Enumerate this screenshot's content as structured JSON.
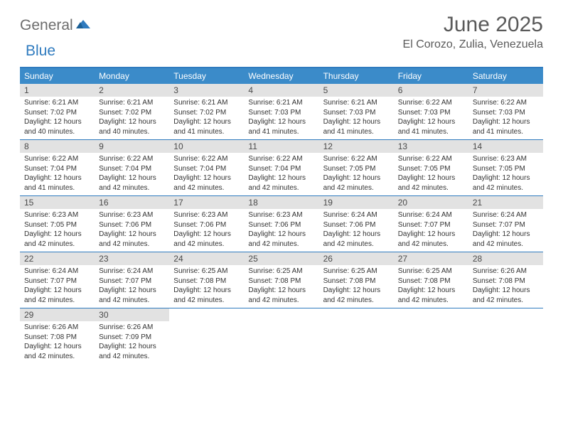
{
  "logo": {
    "part1": "General",
    "part2": "Blue"
  },
  "title": "June 2025",
  "location": "El Corozo, Zulia, Venezuela",
  "colors": {
    "header_bg": "#3b8bc9",
    "rule": "#2f7bbf",
    "daynum_bg": "#e2e2e2",
    "text": "#333333",
    "title_text": "#5a5a5a"
  },
  "day_headers": [
    "Sunday",
    "Monday",
    "Tuesday",
    "Wednesday",
    "Thursday",
    "Friday",
    "Saturday"
  ],
  "weeks": [
    [
      {
        "n": "1",
        "sr": "6:21 AM",
        "ss": "7:02 PM",
        "dl": "12 hours and 40 minutes."
      },
      {
        "n": "2",
        "sr": "6:21 AM",
        "ss": "7:02 PM",
        "dl": "12 hours and 40 minutes."
      },
      {
        "n": "3",
        "sr": "6:21 AM",
        "ss": "7:02 PM",
        "dl": "12 hours and 41 minutes."
      },
      {
        "n": "4",
        "sr": "6:21 AM",
        "ss": "7:03 PM",
        "dl": "12 hours and 41 minutes."
      },
      {
        "n": "5",
        "sr": "6:21 AM",
        "ss": "7:03 PM",
        "dl": "12 hours and 41 minutes."
      },
      {
        "n": "6",
        "sr": "6:22 AM",
        "ss": "7:03 PM",
        "dl": "12 hours and 41 minutes."
      },
      {
        "n": "7",
        "sr": "6:22 AM",
        "ss": "7:03 PM",
        "dl": "12 hours and 41 minutes."
      }
    ],
    [
      {
        "n": "8",
        "sr": "6:22 AM",
        "ss": "7:04 PM",
        "dl": "12 hours and 41 minutes."
      },
      {
        "n": "9",
        "sr": "6:22 AM",
        "ss": "7:04 PM",
        "dl": "12 hours and 42 minutes."
      },
      {
        "n": "10",
        "sr": "6:22 AM",
        "ss": "7:04 PM",
        "dl": "12 hours and 42 minutes."
      },
      {
        "n": "11",
        "sr": "6:22 AM",
        "ss": "7:04 PM",
        "dl": "12 hours and 42 minutes."
      },
      {
        "n": "12",
        "sr": "6:22 AM",
        "ss": "7:05 PM",
        "dl": "12 hours and 42 minutes."
      },
      {
        "n": "13",
        "sr": "6:22 AM",
        "ss": "7:05 PM",
        "dl": "12 hours and 42 minutes."
      },
      {
        "n": "14",
        "sr": "6:23 AM",
        "ss": "7:05 PM",
        "dl": "12 hours and 42 minutes."
      }
    ],
    [
      {
        "n": "15",
        "sr": "6:23 AM",
        "ss": "7:05 PM",
        "dl": "12 hours and 42 minutes."
      },
      {
        "n": "16",
        "sr": "6:23 AM",
        "ss": "7:06 PM",
        "dl": "12 hours and 42 minutes."
      },
      {
        "n": "17",
        "sr": "6:23 AM",
        "ss": "7:06 PM",
        "dl": "12 hours and 42 minutes."
      },
      {
        "n": "18",
        "sr": "6:23 AM",
        "ss": "7:06 PM",
        "dl": "12 hours and 42 minutes."
      },
      {
        "n": "19",
        "sr": "6:24 AM",
        "ss": "7:06 PM",
        "dl": "12 hours and 42 minutes."
      },
      {
        "n": "20",
        "sr": "6:24 AM",
        "ss": "7:07 PM",
        "dl": "12 hours and 42 minutes."
      },
      {
        "n": "21",
        "sr": "6:24 AM",
        "ss": "7:07 PM",
        "dl": "12 hours and 42 minutes."
      }
    ],
    [
      {
        "n": "22",
        "sr": "6:24 AM",
        "ss": "7:07 PM",
        "dl": "12 hours and 42 minutes."
      },
      {
        "n": "23",
        "sr": "6:24 AM",
        "ss": "7:07 PM",
        "dl": "12 hours and 42 minutes."
      },
      {
        "n": "24",
        "sr": "6:25 AM",
        "ss": "7:08 PM",
        "dl": "12 hours and 42 minutes."
      },
      {
        "n": "25",
        "sr": "6:25 AM",
        "ss": "7:08 PM",
        "dl": "12 hours and 42 minutes."
      },
      {
        "n": "26",
        "sr": "6:25 AM",
        "ss": "7:08 PM",
        "dl": "12 hours and 42 minutes."
      },
      {
        "n": "27",
        "sr": "6:25 AM",
        "ss": "7:08 PM",
        "dl": "12 hours and 42 minutes."
      },
      {
        "n": "28",
        "sr": "6:26 AM",
        "ss": "7:08 PM",
        "dl": "12 hours and 42 minutes."
      }
    ],
    [
      {
        "n": "29",
        "sr": "6:26 AM",
        "ss": "7:08 PM",
        "dl": "12 hours and 42 minutes."
      },
      {
        "n": "30",
        "sr": "6:26 AM",
        "ss": "7:09 PM",
        "dl": "12 hours and 42 minutes."
      },
      null,
      null,
      null,
      null,
      null
    ]
  ],
  "labels": {
    "sunrise": "Sunrise:",
    "sunset": "Sunset:",
    "daylight": "Daylight:"
  }
}
